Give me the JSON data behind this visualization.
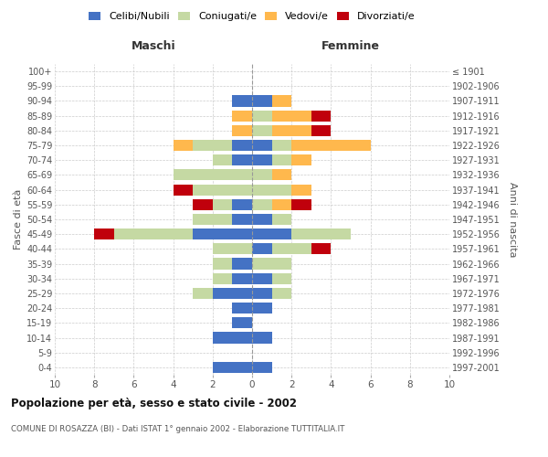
{
  "age_groups": [
    "0-4",
    "5-9",
    "10-14",
    "15-19",
    "20-24",
    "25-29",
    "30-34",
    "35-39",
    "40-44",
    "45-49",
    "50-54",
    "55-59",
    "60-64",
    "65-69",
    "70-74",
    "75-79",
    "80-84",
    "85-89",
    "90-94",
    "95-99",
    "100+"
  ],
  "birth_years": [
    "1997-2001",
    "1992-1996",
    "1987-1991",
    "1982-1986",
    "1977-1981",
    "1972-1976",
    "1967-1971",
    "1962-1966",
    "1957-1961",
    "1952-1956",
    "1947-1951",
    "1942-1946",
    "1937-1941",
    "1932-1936",
    "1927-1931",
    "1922-1926",
    "1917-1921",
    "1912-1916",
    "1907-1911",
    "1902-1906",
    "≤ 1901"
  ],
  "males": {
    "celibi": [
      2,
      0,
      2,
      1,
      1,
      2,
      1,
      1,
      0,
      3,
      1,
      1,
      0,
      0,
      1,
      1,
      0,
      0,
      1,
      0,
      0
    ],
    "coniugati": [
      0,
      0,
      0,
      0,
      0,
      1,
      1,
      1,
      2,
      4,
      2,
      1,
      3,
      4,
      1,
      2,
      0,
      0,
      0,
      0,
      0
    ],
    "vedovi": [
      0,
      0,
      0,
      0,
      0,
      0,
      0,
      0,
      0,
      0,
      0,
      0,
      0,
      0,
      0,
      1,
      1,
      1,
      0,
      0,
      0
    ],
    "divorziati": [
      0,
      0,
      0,
      0,
      0,
      0,
      0,
      0,
      0,
      1,
      0,
      1,
      1,
      0,
      0,
      0,
      0,
      0,
      0,
      0,
      0
    ]
  },
  "females": {
    "nubili": [
      1,
      0,
      1,
      0,
      1,
      1,
      1,
      0,
      1,
      2,
      1,
      0,
      0,
      0,
      1,
      1,
      0,
      0,
      1,
      0,
      0
    ],
    "coniugate": [
      0,
      0,
      0,
      0,
      0,
      1,
      1,
      2,
      2,
      3,
      1,
      1,
      2,
      1,
      1,
      1,
      1,
      1,
      0,
      0,
      0
    ],
    "vedove": [
      0,
      0,
      0,
      0,
      0,
      0,
      0,
      0,
      0,
      0,
      0,
      1,
      1,
      1,
      1,
      4,
      2,
      2,
      1,
      0,
      0
    ],
    "divorziate": [
      0,
      0,
      0,
      0,
      0,
      0,
      0,
      0,
      1,
      0,
      0,
      1,
      0,
      0,
      0,
      0,
      1,
      1,
      0,
      0,
      0
    ]
  },
  "colors": {
    "celibi_nubili": "#4472C4",
    "coniugati": "#C5D9A3",
    "vedovi": "#FFB84D",
    "divorziati": "#C0000C"
  },
  "xlim": 10,
  "title": "Popolazione per età, sesso e stato civile - 2002",
  "subtitle": "COMUNE DI ROSAZZA (BI) - Dati ISTAT 1° gennaio 2002 - Elaborazione TUTTITALIA.IT",
  "xlabel_left": "Maschi",
  "xlabel_right": "Femmine",
  "ylabel_left": "Fasce di età",
  "ylabel_right": "Anni di nascita",
  "legend_labels": [
    "Celibi/Nubili",
    "Coniugati/e",
    "Vedovi/e",
    "Divorziati/e"
  ],
  "background_color": "#FFFFFF",
  "grid_color": "#CCCCCC"
}
